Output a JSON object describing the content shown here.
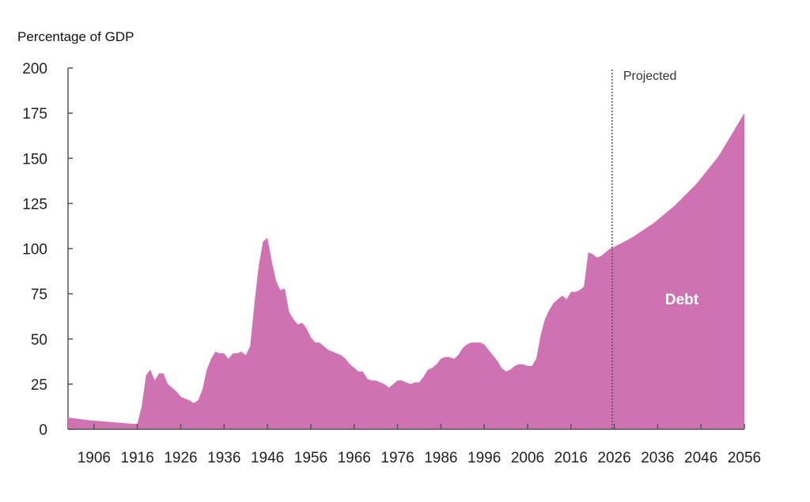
{
  "chart_data": {
    "type": "area",
    "title": "",
    "ylabel": "Percentage of GDP",
    "xlabel": "",
    "xlim": [
      1900,
      2056
    ],
    "ylim": [
      0,
      200
    ],
    "yticks": [
      0,
      25,
      50,
      75,
      100,
      125,
      150,
      175,
      200
    ],
    "xticks": [
      1906,
      1916,
      1926,
      1936,
      1946,
      1956,
      1966,
      1976,
      1986,
      1996,
      2006,
      2016,
      2026,
      2036,
      2046,
      2056
    ],
    "grid": false,
    "fill_color": "#CF72B2",
    "projection": {
      "label": "Projected",
      "start": 2025.5
    },
    "series": [
      {
        "name": "Debt",
        "x": [
          1900,
          1905,
          1910,
          1915,
          1916,
          1917,
          1918,
          1919,
          1920,
          1921,
          1922,
          1923,
          1924,
          1925,
          1926,
          1927,
          1928,
          1929,
          1930,
          1931,
          1932,
          1933,
          1934,
          1935,
          1936,
          1937,
          1938,
          1939,
          1940,
          1941,
          1942,
          1943,
          1944,
          1945,
          1946,
          1947,
          1948,
          1949,
          1950,
          1951,
          1952,
          1953,
          1954,
          1955,
          1956,
          1957,
          1958,
          1959,
          1960,
          1961,
          1962,
          1963,
          1964,
          1965,
          1966,
          1967,
          1968,
          1969,
          1970,
          1971,
          1972,
          1973,
          1974,
          1975,
          1976,
          1977,
          1978,
          1979,
          1980,
          1981,
          1982,
          1983,
          1984,
          1985,
          1986,
          1987,
          1988,
          1989,
          1990,
          1991,
          1992,
          1993,
          1994,
          1995,
          1996,
          1997,
          1998,
          1999,
          2000,
          2001,
          2002,
          2003,
          2004,
          2005,
          2006,
          2007,
          2008,
          2009,
          2010,
          2011,
          2012,
          2013,
          2014,
          2015,
          2016,
          2017,
          2018,
          2019,
          2020,
          2021,
          2022,
          2023,
          2024,
          2025,
          2026,
          2030,
          2035,
          2040,
          2045,
          2050,
          2056
        ],
        "values": [
          6.5,
          5,
          4,
          3,
          3,
          13,
          30,
          33,
          27,
          31,
          31,
          25,
          23,
          21,
          18,
          17,
          16,
          14.5,
          16,
          22,
          33,
          39,
          43,
          42,
          42,
          39,
          42,
          42,
          43,
          41,
          46,
          70,
          91,
          104,
          106,
          93,
          82,
          77,
          78,
          65,
          61,
          58,
          59,
          56,
          51,
          48,
          48,
          46,
          44,
          43,
          42,
          41,
          39,
          36,
          34,
          32,
          32,
          28,
          27,
          27,
          26,
          25,
          23,
          25,
          27,
          27,
          26,
          25,
          26,
          26,
          29,
          33,
          34,
          36,
          39,
          40,
          40,
          39,
          41,
          45,
          47,
          48,
          48,
          48,
          47,
          44,
          41,
          38,
          34,
          32,
          33,
          35,
          36,
          36,
          35,
          35,
          39,
          52,
          61,
          66,
          70,
          72,
          74,
          72,
          76,
          76,
          77,
          79,
          98,
          97,
          95,
          96,
          98,
          100,
          101,
          106,
          114,
          124,
          136,
          151,
          175
        ]
      }
    ]
  }
}
